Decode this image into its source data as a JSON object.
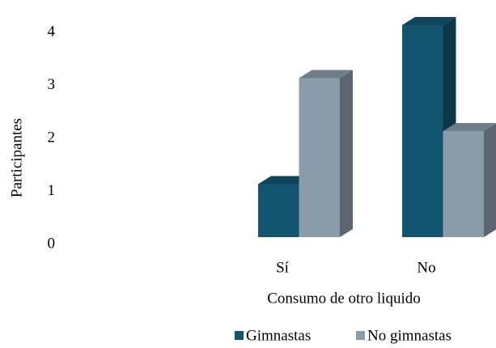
{
  "chart_data": {
    "type": "bar3d",
    "categories": [
      "Sí",
      "No"
    ],
    "series": [
      {
        "name": "Gimnastas",
        "color": "#135570",
        "values": [
          1,
          4
        ]
      },
      {
        "name": "No gimnastas",
        "color": "#8a9caa",
        "values": [
          3,
          2
        ]
      }
    ],
    "ylim": [
      0,
      4
    ],
    "yticks": [
      0,
      1,
      2,
      3,
      4
    ],
    "ylabel": "Participantes",
    "xlabel": "Consumo de otro liquido",
    "grid": false,
    "legend": "bottom"
  }
}
